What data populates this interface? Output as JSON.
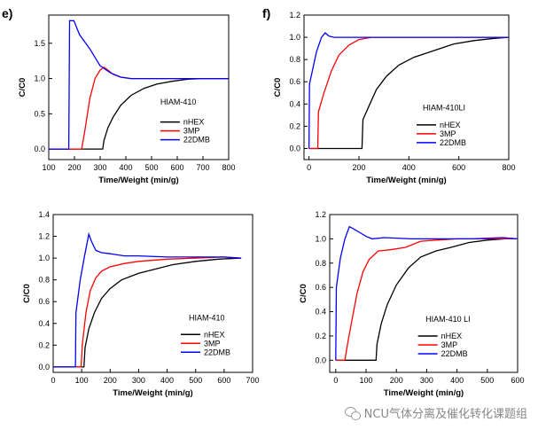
{
  "chart_data": [
    {
      "id": "e",
      "type": "line",
      "panel_label": "e)",
      "annotation": "HIAM-410",
      "xlabel": "Time/Weight (min/g)",
      "ylabel": "C/C0",
      "xlim": [
        100,
        800
      ],
      "ylim": [
        -0.15,
        1.9
      ],
      "xticks": [
        100,
        200,
        300,
        400,
        500,
        600,
        700,
        800
      ],
      "yticks": [
        0.0,
        0.5,
        1.0,
        1.5
      ],
      "yticklabels": [
        "0.0",
        "0.5",
        "1.0",
        "1.5"
      ],
      "legend": "right-middle",
      "series": [
        {
          "name": "nHEX",
          "color": "#000000",
          "x": [
            100,
            310,
            315,
            330,
            350,
            380,
            420,
            470,
            520,
            580,
            640,
            700,
            800
          ],
          "y": [
            0,
            0,
            0.12,
            0.3,
            0.45,
            0.62,
            0.76,
            0.86,
            0.92,
            0.96,
            0.99,
            1.0,
            1.0
          ]
        },
        {
          "name": "3MP",
          "color": "#ff0000",
          "x": [
            100,
            228,
            240,
            260,
            280,
            300,
            315,
            330,
            350,
            380,
            420,
            500,
            600,
            800
          ],
          "y": [
            0,
            0,
            0.25,
            0.72,
            1.0,
            1.12,
            1.16,
            1.12,
            1.06,
            1.02,
            1.0,
            1.0,
            1.0,
            1.0
          ]
        },
        {
          "name": "22DMB",
          "color": "#0000ff",
          "x": [
            100,
            178,
            181,
            198,
            220,
            260,
            300,
            340,
            380,
            420,
            500,
            600,
            800
          ],
          "y": [
            0,
            0,
            1.82,
            1.82,
            1.62,
            1.42,
            1.18,
            1.08,
            1.02,
            1.0,
            1.0,
            1.0,
            1.0
          ]
        }
      ]
    },
    {
      "id": "f",
      "type": "line",
      "panel_label": "f)",
      "annotation": "HIAM-410LI",
      "xlabel": "Time/Weight (min/g)",
      "ylabel": "C/C0",
      "xlim": [
        -20,
        800
      ],
      "ylim": [
        -0.1,
        1.2
      ],
      "xticks": [
        0,
        200,
        400,
        600,
        800
      ],
      "yticks": [
        0.0,
        0.2,
        0.4,
        0.6,
        0.8,
        1.0,
        1.2
      ],
      "yticklabels": [
        "0.0",
        "0.2",
        "0.4",
        "0.6",
        "0.8",
        "1.0",
        "1.2"
      ],
      "legend": "right-middle",
      "series": [
        {
          "name": "nHEX",
          "color": "#000000",
          "x": [
            0,
            212,
            216,
            240,
            270,
            310,
            360,
            420,
            500,
            580,
            660,
            740,
            800
          ],
          "y": [
            0,
            0,
            0.26,
            0.38,
            0.53,
            0.65,
            0.75,
            0.82,
            0.88,
            0.94,
            0.97,
            0.99,
            1.0
          ]
        },
        {
          "name": "3MP",
          "color": "#ff0000",
          "x": [
            0,
            35,
            38,
            60,
            90,
            120,
            160,
            200,
            250,
            300,
            800
          ],
          "y": [
            0,
            0,
            0.33,
            0.5,
            0.7,
            0.84,
            0.93,
            0.98,
            1.0,
            1.0,
            1.0
          ]
        },
        {
          "name": "22DMB",
          "color": "#0000ff",
          "x": [
            0,
            2,
            30,
            50,
            65,
            80,
            100,
            800
          ],
          "y": [
            0,
            0.58,
            0.87,
            1.0,
            1.04,
            1.01,
            1.0,
            1.0
          ]
        }
      ]
    },
    {
      "id": "g",
      "type": "line",
      "panel_label": "",
      "annotation": "HIAM-410",
      "xlabel": "Time/Weight (min/g)",
      "ylabel": "C/C0",
      "xlim": [
        0,
        700
      ],
      "ylim": [
        -0.05,
        1.4
      ],
      "xticks": [
        0,
        100,
        200,
        300,
        400,
        500,
        600,
        700
      ],
      "yticks": [
        0.0,
        0.2,
        0.4,
        0.6,
        0.8,
        1.0,
        1.2,
        1.4
      ],
      "yticklabels": [
        "0.0",
        "0.2",
        "0.4",
        "0.6",
        "0.8",
        "1.0",
        "1.2",
        "1.4"
      ],
      "legend": "right-bottom",
      "series": [
        {
          "name": "nHEX",
          "color": "#000000",
          "x": [
            0,
            108,
            112,
            125,
            145,
            170,
            200,
            240,
            300,
            360,
            420,
            500,
            580,
            660
          ],
          "y": [
            0,
            0,
            0.18,
            0.35,
            0.5,
            0.63,
            0.72,
            0.8,
            0.86,
            0.9,
            0.94,
            0.97,
            0.99,
            1.0
          ]
        },
        {
          "name": "3MP",
          "color": "#ff0000",
          "x": [
            0,
            98,
            102,
            115,
            130,
            150,
            170,
            200,
            250,
            300,
            400,
            500,
            600,
            660
          ],
          "y": [
            0,
            0,
            0.2,
            0.5,
            0.7,
            0.82,
            0.88,
            0.92,
            0.95,
            0.97,
            0.99,
            1.0,
            1.01,
            1.0
          ]
        },
        {
          "name": "22DMB",
          "color": "#0000ff",
          "x": [
            0,
            78,
            80,
            95,
            110,
            125,
            135,
            150,
            170,
            200,
            250,
            300,
            400,
            500,
            600,
            660
          ],
          "y": [
            0,
            0,
            0.5,
            0.8,
            1.02,
            1.22,
            1.15,
            1.07,
            1.05,
            1.04,
            1.02,
            1.02,
            1.01,
            1.01,
            1.01,
            1.0
          ]
        }
      ]
    },
    {
      "id": "h",
      "type": "line",
      "panel_label": "",
      "annotation": "HIAM-410 LI",
      "xlabel": "Time/Weight (min/g)",
      "ylabel": "C/C0",
      "xlim": [
        -20,
        600
      ],
      "ylim": [
        -0.1,
        1.2
      ],
      "xticks": [
        0,
        100,
        200,
        300,
        400,
        500,
        600
      ],
      "yticks": [
        0.0,
        0.2,
        0.4,
        0.6,
        0.8,
        1.0,
        1.2
      ],
      "yticklabels": [
        "0.0",
        "0.2",
        "0.4",
        "0.6",
        "0.8",
        "1.0",
        "1.2"
      ],
      "legend": "right-bottom",
      "series": [
        {
          "name": "nHEX",
          "color": "#000000",
          "x": [
            0,
            133,
            136,
            150,
            170,
            200,
            240,
            280,
            330,
            380,
            440,
            500,
            560,
            600
          ],
          "y": [
            0,
            0,
            0.13,
            0.3,
            0.46,
            0.62,
            0.76,
            0.85,
            0.9,
            0.93,
            0.97,
            0.99,
            1.0,
            1.0
          ]
        },
        {
          "name": "3MP",
          "color": "#ff0000",
          "x": [
            0,
            30,
            40,
            55,
            70,
            90,
            110,
            140,
            180,
            230,
            280,
            330,
            400,
            500,
            600
          ],
          "y": [
            0,
            0,
            0.15,
            0.35,
            0.55,
            0.73,
            0.83,
            0.9,
            0.91,
            0.93,
            0.98,
            0.99,
            1.0,
            1.0,
            1.0
          ]
        },
        {
          "name": "22DMB",
          "color": "#0000ff",
          "x": [
            0,
            2,
            15,
            30,
            45,
            60,
            80,
            100,
            120,
            160,
            250,
            350,
            450,
            550,
            600
          ],
          "y": [
            0,
            0.6,
            0.84,
            1.0,
            1.1,
            1.08,
            1.05,
            1.02,
            1.0,
            1.01,
            1.0,
            1.0,
            1.0,
            1.01,
            1.0
          ]
        }
      ]
    }
  ],
  "watermark": {
    "text": "NCU气体分离及催化转化课题组",
    "icon": "wechat-icon"
  }
}
